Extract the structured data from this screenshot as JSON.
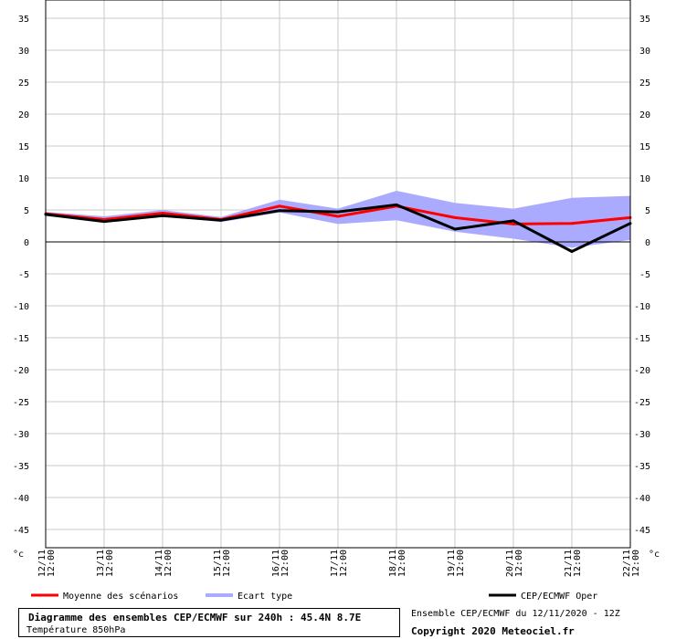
{
  "chart_data": {
    "type": "line",
    "title": "Diagramme des ensembles CEP/ECMWF sur 240h : 45.4N 8.7E",
    "subtitle": "Température 850hPa",
    "y_unit": "°c",
    "ylim": [
      -50,
      38
    ],
    "y_ticks": [
      35,
      30,
      25,
      20,
      15,
      10,
      5,
      0,
      -5,
      -10,
      -15,
      -20,
      -25,
      -30,
      -35,
      -40,
      -45
    ],
    "x_tick_dates": [
      "12/11",
      "13/11",
      "14/11",
      "15/11",
      "16/11",
      "17/11",
      "18/11",
      "19/11",
      "20/11",
      "21/11",
      "22/11"
    ],
    "x_tick_times": [
      "12:00",
      "12:00",
      "12:00",
      "12:00",
      "12:00",
      "12:00",
      "12:00",
      "12:00",
      "12:00",
      "12:00",
      "12:00"
    ],
    "x": [
      "12/11 12:00",
      "13/11 12:00",
      "14/11 12:00",
      "15/11 12:00",
      "16/11 12:00",
      "17/11 12:00",
      "18/11 12:00",
      "19/11 12:00",
      "20/11 12:00",
      "21/11 12:00",
      "22/11 12:00"
    ],
    "grid": true,
    "legend_position": "bottom",
    "series": [
      {
        "name": "Moyenne des scénarios",
        "type": "line",
        "color": "#ff0000",
        "values": [
          4.4,
          3.5,
          4.5,
          3.5,
          5.6,
          4.0,
          5.6,
          3.8,
          2.8,
          2.9,
          3.8
        ]
      },
      {
        "name": "Ecart type",
        "type": "band",
        "color": "#aaaaff",
        "upper": [
          4.7,
          4.0,
          5.0,
          3.9,
          6.6,
          5.2,
          8.0,
          6.1,
          5.2,
          6.9,
          7.2
        ],
        "lower": [
          4.1,
          3.0,
          4.0,
          3.1,
          4.6,
          2.8,
          3.4,
          1.6,
          0.5,
          -0.9,
          0.3
        ]
      },
      {
        "name": "CEP/ECMWF Oper",
        "type": "line",
        "color": "#000000",
        "values": [
          4.3,
          3.2,
          4.1,
          3.4,
          4.9,
          4.7,
          5.8,
          2.0,
          3.3,
          -1.5,
          2.9
        ]
      }
    ]
  },
  "source": "Ensemble CEP/ECMWF du 12/11/2020 - 12Z",
  "copyright": "Copyright 2020 Meteociel.fr"
}
